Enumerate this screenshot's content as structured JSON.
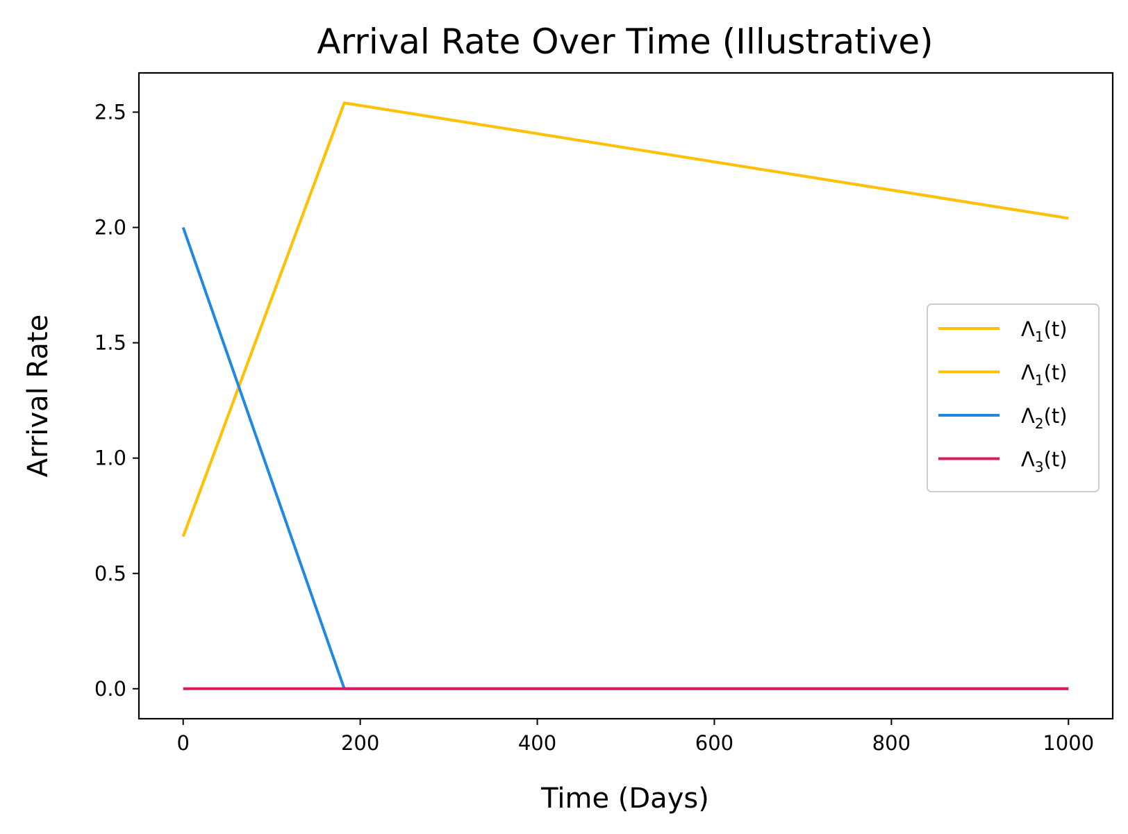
{
  "chart_data": {
    "type": "line",
    "title": "Arrival Rate Over Time (Illustrative)",
    "xlabel": "Time (Days)",
    "ylabel": "Arrival Rate",
    "xlim": [
      -50,
      1050
    ],
    "ylim": [
      -0.13,
      2.67
    ],
    "xticks": [
      0,
      200,
      400,
      600,
      800,
      1000
    ],
    "xtick_labels": [
      "0",
      "200",
      "400",
      "600",
      "800",
      "1000"
    ],
    "yticks": [
      0.0,
      0.5,
      1.0,
      1.5,
      2.0,
      2.5
    ],
    "ytick_labels": [
      "0.0",
      "0.5",
      "1.0",
      "1.5",
      "2.0",
      "2.5"
    ],
    "grid": false,
    "legend_position": "center-right",
    "series": [
      {
        "name": "Λ1(t)",
        "base": "Λ",
        "sub": "1",
        "arg": "(t)",
        "color": "#FFC107",
        "x": [
          0,
          182,
          1000
        ],
        "y": [
          0.66,
          2.54,
          2.04
        ]
      },
      {
        "name": "Λ1(t)",
        "base": "Λ",
        "sub": "1",
        "arg": "(t)",
        "color": "#FFC107",
        "x": [
          0,
          182,
          1000
        ],
        "y": [
          0.66,
          2.54,
          2.04
        ]
      },
      {
        "name": "Λ2(t)",
        "base": "Λ",
        "sub": "2",
        "arg": "(t)",
        "color": "#1E88E5",
        "x": [
          0,
          182,
          1000
        ],
        "y": [
          2.0,
          0.0,
          0.0
        ]
      },
      {
        "name": "Λ3(t)",
        "base": "Λ",
        "sub": "3",
        "arg": "(t)",
        "color": "#D81B60",
        "x": [
          0,
          182,
          1000
        ],
        "y": [
          0.0,
          0.0,
          0.0
        ]
      }
    ]
  }
}
